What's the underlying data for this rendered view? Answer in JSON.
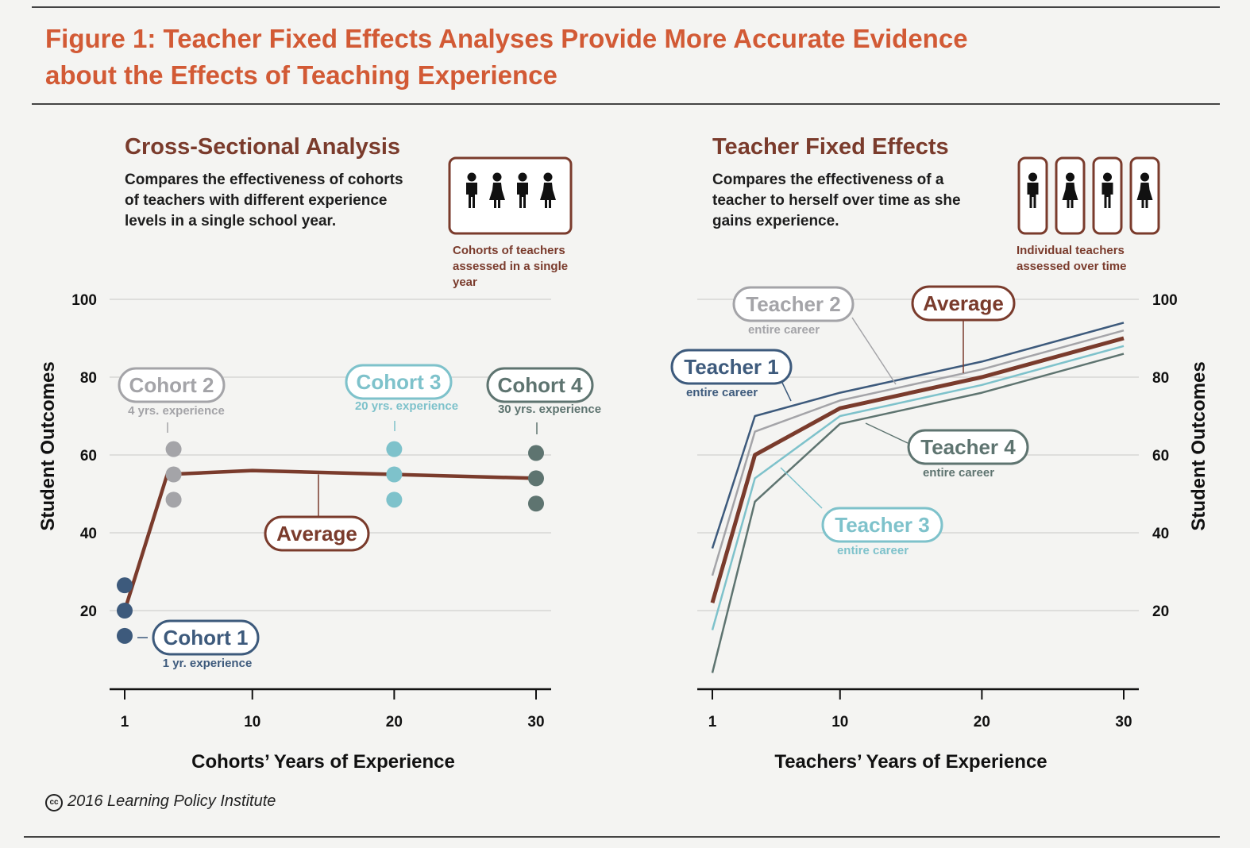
{
  "figure": {
    "title_line1": "Figure 1: Teacher Fixed Effects Analyses Provide More Accurate Evidence",
    "title_line2": "about the Effects of Teaching Experience"
  },
  "left_panel": {
    "title": "Cross-Sectional Analysis",
    "desc_line1": "Compares the effectiveness of cohorts",
    "desc_line2": "of teachers with different experience",
    "desc_line3": "levels in a single school year.",
    "icon": "cohort-group-icon",
    "icon_caption_line1": "Cohorts of teachers",
    "icon_caption_line2": "assessed in a single",
    "icon_caption_line3": "year"
  },
  "right_panel": {
    "title": "Teacher Fixed Effects",
    "desc_line1": "Compares the effectiveness of a",
    "desc_line2": "teacher to herself over time as she",
    "desc_line3": "gains experience.",
    "icon": "individual-teacher-icon",
    "icon_caption_line1": "Individual teachers",
    "icon_caption_line2": "assessed over time"
  },
  "colors": {
    "brown": "#7a3b2c",
    "orange_title": "#d25a35",
    "navy": "#3d5a7c",
    "gray": "#a4a4a8",
    "teal": "#7ec2cb",
    "slate": "#5e7470",
    "grid": "#d6d6d4"
  },
  "footer": {
    "icon": "creative-commons-icon",
    "text": "2016 Learning Policy Institute"
  },
  "chart_data": [
    {
      "type": "scatter",
      "title": "Cross-Sectional Analysis",
      "xlabel": "Cohorts’ Years of Experience",
      "ylabel": "Student Outcomes",
      "x_ticks": [
        1,
        10,
        20,
        30
      ],
      "y_ticks": [
        20,
        40,
        60,
        80,
        100
      ],
      "ylim": [
        0,
        100
      ],
      "xlim": [
        0,
        31
      ],
      "grid": true,
      "series": [
        {
          "name": "Cohort 1",
          "label": "1 yr. experience",
          "x": 1,
          "values": [
            26.5,
            20,
            13.5
          ]
        },
        {
          "name": "Cohort 2",
          "label": "4 yrs. experience",
          "x": 4,
          "values": [
            61.5,
            55,
            48.5
          ]
        },
        {
          "name": "Cohort 3",
          "label": "20 yrs. experience",
          "x": 20,
          "values": [
            61.5,
            55,
            48.5
          ]
        },
        {
          "name": "Cohort 4",
          "label": "30 yrs. experience",
          "x": 30,
          "values": [
            60.5,
            54,
            47.5
          ]
        }
      ],
      "average": {
        "name": "Average",
        "x": [
          1,
          4,
          10,
          20,
          30
        ],
        "values": [
          20,
          55,
          56,
          55,
          54
        ]
      }
    },
    {
      "type": "line",
      "title": "Teacher Fixed Effects",
      "xlabel": "Teachers’ Years of Experience",
      "ylabel": "Student Outcomes",
      "x_ticks": [
        1,
        10,
        20,
        30
      ],
      "y_ticks": [
        20,
        40,
        60,
        80,
        100
      ],
      "ylim": [
        0,
        100
      ],
      "xlim": [
        0,
        31
      ],
      "grid": true,
      "x": [
        1,
        4,
        10,
        20,
        30
      ],
      "series": [
        {
          "name": "Teacher 1",
          "label": "entire career",
          "values": [
            36,
            70,
            76,
            84,
            94
          ]
        },
        {
          "name": "Teacher 2",
          "label": "entire career",
          "values": [
            29,
            66,
            74,
            82,
            92
          ]
        },
        {
          "name": "Teacher 3",
          "label": "entire career",
          "values": [
            15,
            54,
            70,
            78,
            88
          ]
        },
        {
          "name": "Teacher 4",
          "label": "entire career",
          "values": [
            4,
            48,
            68,
            76,
            86
          ]
        },
        {
          "name": "Average",
          "values": [
            22,
            60,
            72,
            80,
            90
          ]
        }
      ]
    }
  ]
}
